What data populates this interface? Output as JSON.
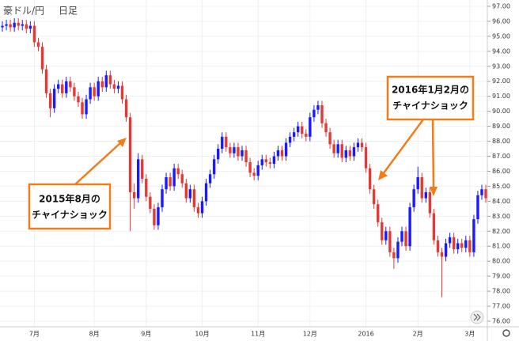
{
  "chart_data": {
    "type": "candlestick",
    "symbol": "豪ドル/円",
    "timeframe": "日足",
    "categories": [
      null,
      null,
      null,
      null,
      null,
      null,
      null,
      null,
      "7月",
      null,
      null,
      null,
      null,
      null,
      null,
      null,
      null,
      null,
      null,
      null,
      null,
      null,
      null,
      "8月",
      null,
      null,
      null,
      null,
      null,
      null,
      null,
      null,
      null,
      null,
      null,
      null,
      "9月",
      null,
      null,
      null,
      null,
      null,
      null,
      null,
      null,
      null,
      null,
      null,
      null,
      null,
      "10月",
      null,
      null,
      null,
      null,
      null,
      null,
      null,
      null,
      null,
      null,
      null,
      null,
      null,
      "11月",
      null,
      null,
      null,
      null,
      null,
      null,
      null,
      null,
      null,
      null,
      null,
      null,
      "12月",
      null,
      null,
      null,
      null,
      null,
      null,
      null,
      null,
      null,
      null,
      null,
      null,
      null,
      "2016",
      null,
      null,
      null,
      null,
      null,
      null,
      null,
      null,
      null,
      null,
      null,
      null,
      "2月",
      null,
      null,
      null,
      null,
      null,
      null,
      null,
      null,
      null,
      null,
      null,
      null,
      "3月",
      null,
      null,
      null,
      null
    ],
    "open": [
      95.6,
      95.7,
      95.8,
      95.6,
      95.9,
      95.7,
      95.8,
      95.5,
      95.7,
      94.6,
      94.3,
      92.8,
      91.2,
      90.2,
      91.5,
      91.8,
      91.2,
      92.0,
      91.6,
      91.0,
      90.6,
      89.8,
      90.8,
      91.6,
      91.0,
      92.0,
      91.6,
      92.4,
      91.8,
      91.5,
      91.7,
      90.8,
      89.6,
      84.6,
      84.2,
      86.8,
      85.5,
      84.3,
      83.5,
      82.4,
      83.6,
      84.8,
      85.6,
      85.0,
      86.2,
      85.8,
      85.2,
      84.2,
      84.8,
      83.6,
      83.2,
      84.0,
      85.2,
      85.8,
      86.8,
      87.5,
      88.3,
      87.6,
      87.2,
      87.6,
      87.0,
      87.4,
      86.6,
      85.9,
      85.7,
      86.4,
      86.8,
      86.6,
      86.5,
      87.0,
      87.4,
      87.0,
      87.9,
      88.3,
      88.6,
      89.0,
      88.5,
      88.3,
      89.6,
      90.1,
      90.4,
      89.2,
      88.6,
      87.8,
      87.2,
      87.8,
      86.9,
      87.4,
      87.0,
      87.6,
      87.9,
      87.6,
      86.2,
      84.8,
      83.8,
      82.6,
      81.4,
      82.0,
      80.6,
      80.2,
      81.3,
      82.0,
      81.0,
      83.6,
      84.8,
      85.6,
      84.2,
      84.6,
      83.2,
      81.4,
      80.6,
      80.3,
      81.2,
      81.6,
      80.8,
      81.2,
      80.9,
      81.4,
      80.6,
      82.8,
      84.4,
      84.8
    ],
    "high": [
      96.0,
      96.1,
      96.1,
      96.2,
      96.2,
      96.1,
      96.1,
      96.0,
      96.0,
      94.9,
      94.6,
      93.1,
      91.5,
      91.8,
      92.1,
      92.1,
      92.3,
      92.3,
      91.9,
      91.3,
      90.9,
      91.1,
      91.9,
      91.9,
      92.3,
      92.3,
      92.7,
      92.7,
      92.1,
      92.0,
      92.0,
      91.1,
      89.9,
      85.2,
      87.2,
      87.1,
      85.8,
      84.6,
      83.8,
      83.9,
      85.1,
      85.9,
      85.9,
      86.5,
      86.5,
      86.1,
      85.5,
      85.1,
      85.1,
      83.9,
      84.3,
      85.5,
      86.1,
      87.1,
      87.8,
      88.6,
      88.6,
      87.9,
      87.9,
      87.9,
      87.7,
      87.7,
      86.9,
      86.2,
      86.7,
      87.1,
      87.1,
      86.9,
      87.3,
      87.7,
      87.7,
      88.2,
      88.6,
      88.9,
      89.3,
      89.3,
      88.8,
      89.9,
      90.4,
      90.7,
      90.7,
      89.5,
      88.9,
      88.1,
      88.1,
      88.1,
      87.7,
      87.7,
      87.9,
      88.2,
      88.2,
      87.9,
      86.5,
      85.1,
      84.1,
      82.9,
      82.3,
      82.3,
      80.9,
      81.6,
      82.3,
      82.3,
      83.9,
      85.1,
      86.3,
      85.9,
      84.9,
      84.9,
      83.5,
      81.7,
      80.9,
      81.5,
      81.9,
      81.9,
      81.5,
      81.5,
      81.7,
      81.7,
      83.1,
      84.7,
      85.1,
      85.1
    ],
    "low": [
      95.3,
      95.4,
      95.3,
      95.3,
      95.4,
      95.4,
      95.2,
      95.2,
      94.3,
      94.0,
      92.5,
      90.9,
      89.6,
      89.9,
      91.2,
      90.9,
      90.9,
      91.3,
      90.7,
      90.3,
      89.5,
      89.5,
      90.5,
      90.7,
      90.7,
      91.3,
      91.3,
      91.5,
      91.2,
      91.2,
      90.5,
      89.3,
      82.0,
      83.5,
      83.9,
      85.2,
      84.0,
      83.2,
      82.1,
      82.1,
      83.3,
      84.5,
      84.7,
      84.7,
      85.5,
      84.9,
      83.9,
      83.9,
      83.3,
      82.9,
      82.9,
      83.7,
      84.9,
      85.5,
      86.5,
      87.2,
      87.3,
      86.9,
      86.9,
      86.7,
      86.7,
      86.3,
      85.6,
      85.4,
      85.4,
      86.1,
      86.3,
      86.2,
      86.2,
      86.7,
      86.7,
      86.7,
      87.6,
      88.0,
      88.3,
      88.2,
      88.0,
      88.0,
      89.3,
      89.8,
      88.9,
      88.3,
      87.5,
      86.9,
      86.9,
      86.6,
      86.6,
      86.7,
      86.7,
      87.3,
      87.3,
      85.9,
      84.5,
      83.5,
      82.3,
      81.1,
      81.1,
      80.3,
      79.5,
      79.9,
      81.0,
      80.7,
      80.7,
      83.3,
      84.5,
      83.9,
      83.9,
      82.9,
      81.1,
      80.3,
      77.6,
      80.0,
      80.9,
      80.5,
      80.5,
      80.6,
      80.6,
      80.3,
      80.3,
      82.5,
      84.1,
      83.9
    ],
    "close": [
      95.7,
      95.8,
      95.6,
      95.9,
      95.7,
      95.8,
      95.5,
      95.7,
      94.6,
      94.3,
      92.8,
      91.2,
      90.2,
      91.5,
      91.8,
      91.2,
      92.0,
      91.6,
      91.0,
      90.6,
      89.8,
      90.8,
      91.6,
      91.0,
      92.0,
      91.6,
      92.4,
      91.8,
      91.5,
      91.7,
      90.8,
      89.6,
      84.6,
      84.2,
      86.8,
      85.5,
      84.3,
      83.5,
      82.4,
      83.6,
      84.8,
      85.6,
      85.0,
      86.2,
      85.8,
      85.2,
      84.2,
      84.8,
      83.6,
      83.2,
      84.0,
      85.2,
      85.8,
      86.8,
      87.5,
      88.3,
      87.6,
      87.2,
      87.6,
      87.0,
      87.4,
      86.6,
      85.9,
      85.7,
      86.4,
      86.8,
      86.6,
      86.5,
      87.0,
      87.4,
      87.0,
      87.9,
      88.3,
      88.6,
      89.0,
      88.5,
      88.3,
      89.6,
      90.1,
      90.4,
      89.2,
      88.6,
      87.8,
      87.2,
      87.8,
      86.9,
      87.4,
      87.0,
      87.6,
      87.9,
      87.6,
      86.2,
      84.8,
      83.8,
      82.6,
      81.4,
      82.0,
      80.6,
      80.2,
      81.3,
      82.0,
      81.0,
      83.6,
      84.8,
      85.6,
      84.2,
      84.6,
      83.2,
      81.4,
      80.6,
      80.3,
      81.2,
      81.6,
      80.8,
      81.2,
      80.9,
      81.4,
      80.6,
      82.8,
      84.4,
      84.8,
      84.2
    ],
    "up_color": "#1a1aff",
    "down_color": "#e53935",
    "ylim": [
      75.63,
      97.42
    ],
    "yticks": [
      {
        "value": 76,
        "label": "76.00"
      },
      {
        "value": 77,
        "label": "77.00"
      },
      {
        "value": 78,
        "label": "78.00"
      },
      {
        "value": 79,
        "label": "79.00"
      },
      {
        "value": 80,
        "label": "80.00"
      },
      {
        "value": 81,
        "label": "81.00"
      },
      {
        "value": 82,
        "label": "82.00"
      },
      {
        "value": 83,
        "label": "83.00"
      },
      {
        "value": 84,
        "label": "84.00"
      },
      {
        "value": 85,
        "label": "85.00"
      },
      {
        "value": 86,
        "label": "86.00"
      },
      {
        "value": 87,
        "label": "87.00"
      },
      {
        "value": 88,
        "label": "88.00"
      },
      {
        "value": 89,
        "label": "89.00"
      },
      {
        "value": 90,
        "label": "90.00"
      },
      {
        "value": 91,
        "label": "91.00"
      },
      {
        "value": 92,
        "label": "92.00"
      },
      {
        "value": 93,
        "label": "93.00"
      },
      {
        "value": 94,
        "label": "94.00"
      },
      {
        "value": 95,
        "label": "95.00"
      },
      {
        "value": 96,
        "label": "96.00"
      },
      {
        "value": 97,
        "label": "97.00"
      }
    ],
    "grid": true,
    "annotations": [
      {
        "lines": [
          "2015年8月の",
          "チャイナショック"
        ]
      },
      {
        "lines": [
          "2016年1月2月の",
          "チャイナショック"
        ]
      }
    ]
  }
}
